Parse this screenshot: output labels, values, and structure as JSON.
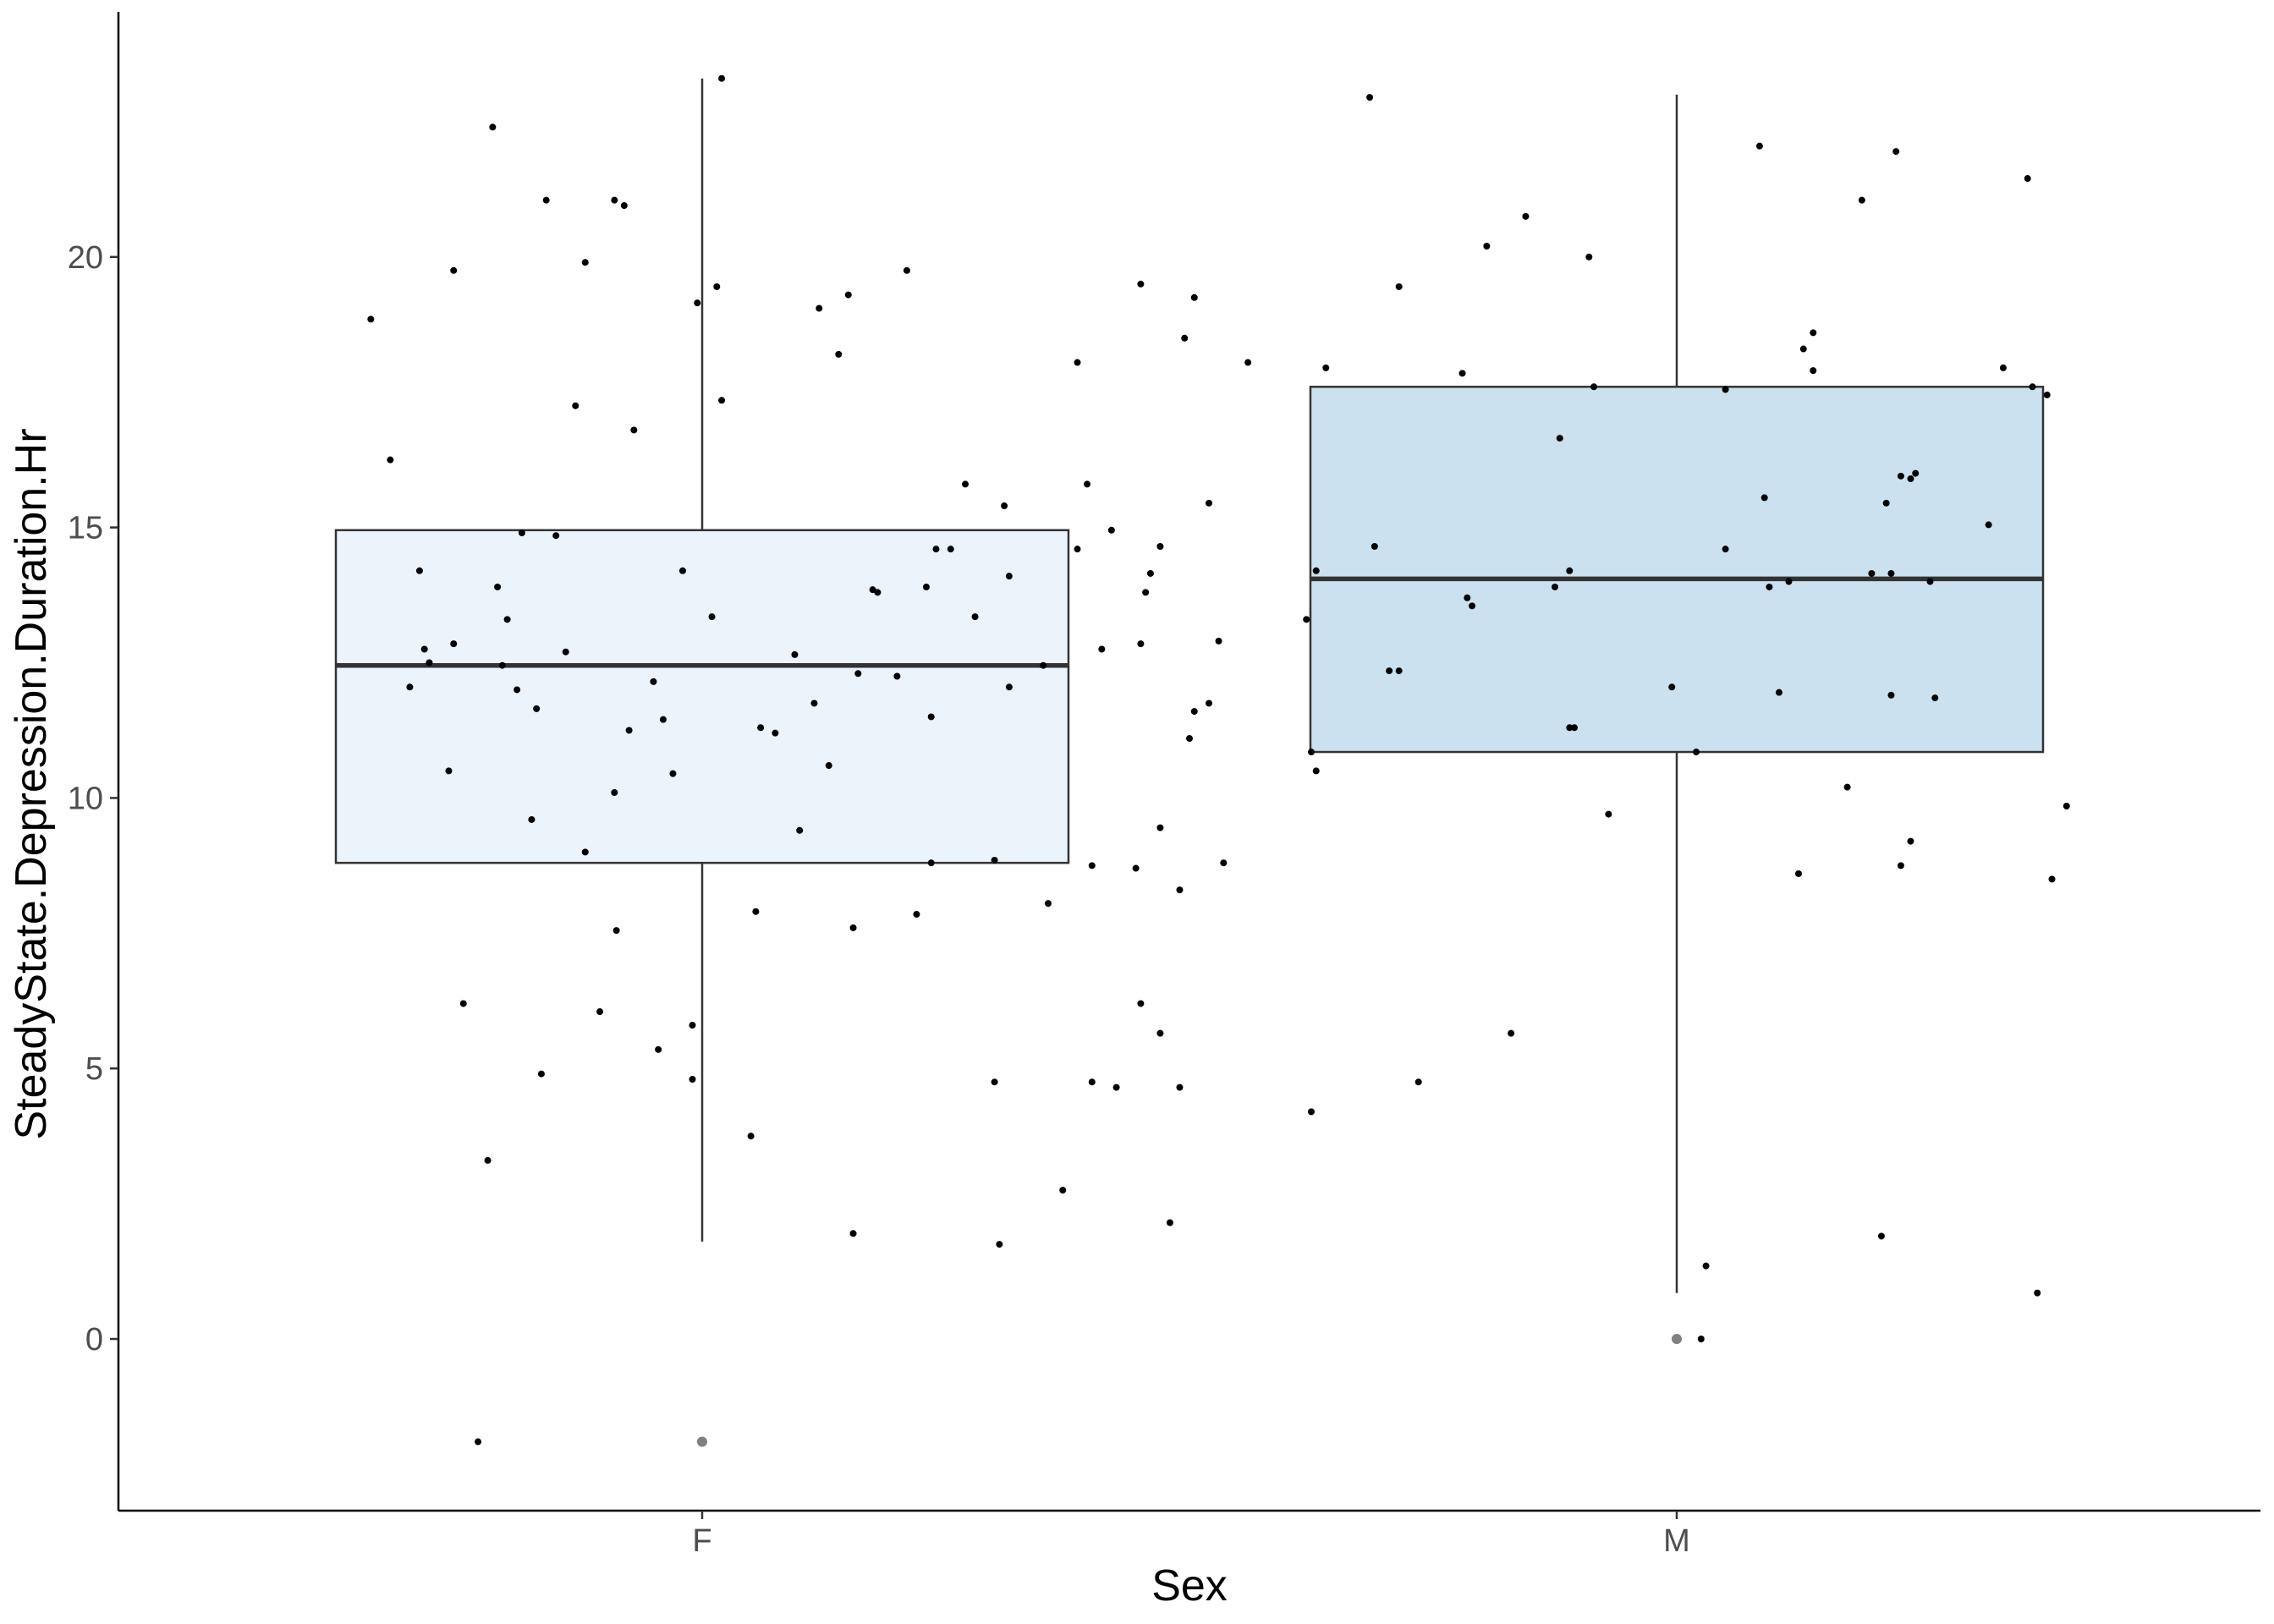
{
  "chart_data": {
    "type": "boxplot",
    "title": "",
    "xlabel": "Sex",
    "ylabel": "SteadyState.Depression.Duration.Hr",
    "categories": [
      "F",
      "M"
    ],
    "ylim": [
      -3.2,
      24.5
    ],
    "yticks": [
      0,
      5,
      10,
      15,
      20
    ],
    "grid": false,
    "legend": "none",
    "colors": {
      "box_fill": [
        "#ebf3fb",
        "#cbe1ef"
      ],
      "box_stroke": "#333333",
      "point": "#000000",
      "outlier": "#808080"
    },
    "boxes": [
      {
        "category": "F",
        "whisker_low": 1.8,
        "q1": 8.8,
        "median": 12.45,
        "q3": 14.95,
        "whisker_high": 23.3,
        "outliers": [
          -1.9
        ]
      },
      {
        "category": "M",
        "whisker_low": 0.85,
        "q1": 10.85,
        "median": 14.05,
        "q3": 17.6,
        "whisker_high": 23.0,
        "outliers": [
          0.0
        ]
      }
    ],
    "points": [
      [
        0.66,
        18.85
      ],
      [
        0.68,
        16.25
      ],
      [
        0.7,
        12.05
      ],
      [
        0.71,
        14.2
      ],
      [
        0.715,
        12.75
      ],
      [
        0.72,
        12.5
      ],
      [
        0.74,
        10.5
      ],
      [
        0.745,
        12.85
      ],
      [
        0.745,
        19.75
      ],
      [
        0.755,
        6.2
      ],
      [
        0.77,
        -1.9
      ],
      [
        0.78,
        3.3
      ],
      [
        0.785,
        22.4
      ],
      [
        0.79,
        13.9
      ],
      [
        0.795,
        12.45
      ],
      [
        0.8,
        13.3
      ],
      [
        0.81,
        12.0
      ],
      [
        0.815,
        14.9
      ],
      [
        0.825,
        9.6
      ],
      [
        0.83,
        11.65
      ],
      [
        0.835,
        4.9
      ],
      [
        0.84,
        21.05
      ],
      [
        0.85,
        14.85
      ],
      [
        0.86,
        12.7
      ],
      [
        0.87,
        17.25
      ],
      [
        0.88,
        19.9
      ],
      [
        0.88,
        9.0
      ],
      [
        0.895,
        6.05
      ],
      [
        0.91,
        10.1
      ],
      [
        0.91,
        21.05
      ],
      [
        0.912,
        7.55
      ],
      [
        0.92,
        20.95
      ],
      [
        0.925,
        11.25
      ],
      [
        0.93,
        16.8
      ],
      [
        0.95,
        12.15
      ],
      [
        0.955,
        5.35
      ],
      [
        0.96,
        11.45
      ],
      [
        0.97,
        10.45
      ],
      [
        0.98,
        14.2
      ],
      [
        0.99,
        4.8
      ],
      [
        0.99,
        5.8
      ],
      [
        0.995,
        19.15
      ],
      [
        1.01,
        13.35
      ],
      [
        1.015,
        19.45
      ],
      [
        1.02,
        17.35
      ],
      [
        1.02,
        23.3
      ],
      [
        1.05,
        3.75
      ],
      [
        1.055,
        7.9
      ],
      [
        1.06,
        11.3
      ],
      [
        1.075,
        11.2
      ],
      [
        1.095,
        12.65
      ],
      [
        1.1,
        9.4
      ],
      [
        1.115,
        11.75
      ],
      [
        1.12,
        19.05
      ],
      [
        1.13,
        10.6
      ],
      [
        1.14,
        18.2
      ],
      [
        1.15,
        19.3
      ],
      [
        1.155,
        7.6
      ],
      [
        1.155,
        1.95
      ],
      [
        1.16,
        12.3
      ],
      [
        1.175,
        13.85
      ],
      [
        1.18,
        13.8
      ],
      [
        1.2,
        12.25
      ],
      [
        1.21,
        19.75
      ],
      [
        1.22,
        7.85
      ],
      [
        1.23,
        13.9
      ],
      [
        1.235,
        11.5
      ],
      [
        1.235,
        8.8
      ],
      [
        1.24,
        14.6
      ],
      [
        1.255,
        14.6
      ],
      [
        1.27,
        15.8
      ],
      [
        1.28,
        13.35
      ],
      [
        1.3,
        8.85
      ],
      [
        1.3,
        4.75
      ],
      [
        1.305,
        1.75
      ],
      [
        1.31,
        15.4
      ],
      [
        1.315,
        14.1
      ],
      [
        1.315,
        12.05
      ],
      [
        1.35,
        12.45
      ],
      [
        1.355,
        8.05
      ],
      [
        1.37,
        2.75
      ],
      [
        1.385,
        14.6
      ],
      [
        1.385,
        18.05
      ],
      [
        1.395,
        15.8
      ],
      [
        1.4,
        8.75
      ],
      [
        1.4,
        4.75
      ],
      [
        1.41,
        12.75
      ],
      [
        1.42,
        14.95
      ],
      [
        1.425,
        4.65
      ],
      [
        1.445,
        8.7
      ],
      [
        1.45,
        12.85
      ],
      [
        1.45,
        6.2
      ],
      [
        1.45,
        19.5
      ],
      [
        1.455,
        13.8
      ],
      [
        1.46,
        14.15
      ],
      [
        1.47,
        9.45
      ],
      [
        1.47,
        5.65
      ],
      [
        1.47,
        14.65
      ],
      [
        1.48,
        2.15
      ],
      [
        1.49,
        8.3
      ],
      [
        1.49,
        4.65
      ],
      [
        1.495,
        18.5
      ],
      [
        1.5,
        11.1
      ],
      [
        1.505,
        19.25
      ],
      [
        1.505,
        11.6
      ],
      [
        1.52,
        11.75
      ],
      [
        1.52,
        15.45
      ],
      [
        1.53,
        12.9
      ],
      [
        1.535,
        8.8
      ],
      [
        1.56,
        18.05
      ],
      [
        1.62,
        13.3
      ],
      [
        1.625,
        10.85
      ],
      [
        1.625,
        4.2
      ],
      [
        1.63,
        10.5
      ],
      [
        1.63,
        14.2
      ],
      [
        1.64,
        17.95
      ],
      [
        1.685,
        22.95
      ],
      [
        1.69,
        14.65
      ],
      [
        1.705,
        12.35
      ],
      [
        1.715,
        19.45
      ],
      [
        1.715,
        12.35
      ],
      [
        1.735,
        4.75
      ],
      [
        1.78,
        17.85
      ],
      [
        1.785,
        13.7
      ],
      [
        1.79,
        13.55
      ],
      [
        1.805,
        20.2
      ],
      [
        1.83,
        5.65
      ],
      [
        1.845,
        20.75
      ],
      [
        1.875,
        13.9
      ],
      [
        1.88,
        16.65
      ],
      [
        1.89,
        11.3
      ],
      [
        1.89,
        14.2
      ],
      [
        1.895,
        11.3
      ],
      [
        1.91,
        20.0
      ],
      [
        1.915,
        17.6
      ],
      [
        1.93,
        9.7
      ],
      [
        1.995,
        12.05
      ],
      [
        2.02,
        10.85
      ],
      [
        2.025,
        0.0
      ],
      [
        2.03,
        1.35
      ],
      [
        2.05,
        14.6
      ],
      [
        2.05,
        17.55
      ],
      [
        2.085,
        22.05
      ],
      [
        2.09,
        15.55
      ],
      [
        2.095,
        13.9
      ],
      [
        2.105,
        11.95
      ],
      [
        2.115,
        14.0
      ],
      [
        2.125,
        8.6
      ],
      [
        2.13,
        18.3
      ],
      [
        2.14,
        17.9
      ],
      [
        2.14,
        18.6
      ],
      [
        2.175,
        10.2
      ],
      [
        2.19,
        21.05
      ],
      [
        2.2,
        14.15
      ],
      [
        2.21,
        1.9
      ],
      [
        2.215,
        15.45
      ],
      [
        2.22,
        14.15
      ],
      [
        2.22,
        11.9
      ],
      [
        2.225,
        21.95
      ],
      [
        2.23,
        15.95
      ],
      [
        2.23,
        8.75
      ],
      [
        2.24,
        15.9
      ],
      [
        2.24,
        9.2
      ],
      [
        2.245,
        16.0
      ],
      [
        2.26,
        14.0
      ],
      [
        2.265,
        11.85
      ],
      [
        2.32,
        15.05
      ],
      [
        2.335,
        17.95
      ],
      [
        2.36,
        21.45
      ],
      [
        2.365,
        17.6
      ],
      [
        2.37,
        0.85
      ],
      [
        2.38,
        17.45
      ],
      [
        2.385,
        8.5
      ],
      [
        2.4,
        9.85
      ]
    ]
  }
}
